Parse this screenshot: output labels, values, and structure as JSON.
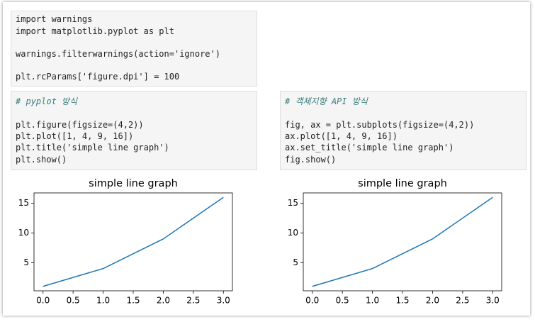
{
  "cells": [
    {
      "lines": [
        "import warnings",
        "import matplotlib.pyplot as plt",
        "warnings.filterwarnings(action='ignore')",
        "plt.rcParams['figure.dpi'] = 100"
      ]
    },
    {
      "lines": [
        "# pyplot 방식",
        "plt.figure(figsize=(4,2))",
        "plt.plot([1, 4, 9, 16])",
        "plt.title('simple line graph')",
        "plt.show()"
      ]
    },
    {
      "lines": [
        "# 객체지향 API 방식",
        "fig, ax = plt.subplots(figsize=(4,2))",
        "ax.plot([1, 4, 9, 16])",
        "ax.set_title('simple line graph')",
        "fig.show()"
      ]
    }
  ],
  "chart_data": [
    {
      "type": "line",
      "title": "simple line graph",
      "x": [
        0,
        1,
        2,
        3
      ],
      "values": [
        1,
        4,
        9,
        16
      ],
      "color": "#1f77b4",
      "xlim": [
        -0.15,
        3.15
      ],
      "ylim": [
        0.25,
        16.75
      ],
      "xticks": [
        {
          "value": 0,
          "label": "0.0"
        },
        {
          "value": 0.5,
          "label": "0.5"
        },
        {
          "value": 1,
          "label": "1.0"
        },
        {
          "value": 1.5,
          "label": "1.5"
        },
        {
          "value": 2,
          "label": "2.0"
        },
        {
          "value": 2.5,
          "label": "2.5"
        },
        {
          "value": 3,
          "label": "3.0"
        }
      ],
      "yticks": [
        5,
        10,
        15
      ]
    },
    {
      "type": "line",
      "title": "simple line graph",
      "x": [
        0,
        1,
        2,
        3
      ],
      "values": [
        1,
        4,
        9,
        16
      ],
      "color": "#1f77b4",
      "xlim": [
        -0.15,
        3.15
      ],
      "ylim": [
        0.25,
        16.75
      ],
      "xticks": [
        {
          "value": 0,
          "label": "0.0"
        },
        {
          "value": 0.5,
          "label": "0.5"
        },
        {
          "value": 1,
          "label": "1.0"
        },
        {
          "value": 1.5,
          "label": "1.5"
        },
        {
          "value": 2,
          "label": "2.0"
        },
        {
          "value": 2.5,
          "label": "2.5"
        },
        {
          "value": 3,
          "label": "3.0"
        }
      ],
      "yticks": [
        5,
        10,
        15
      ]
    }
  ]
}
